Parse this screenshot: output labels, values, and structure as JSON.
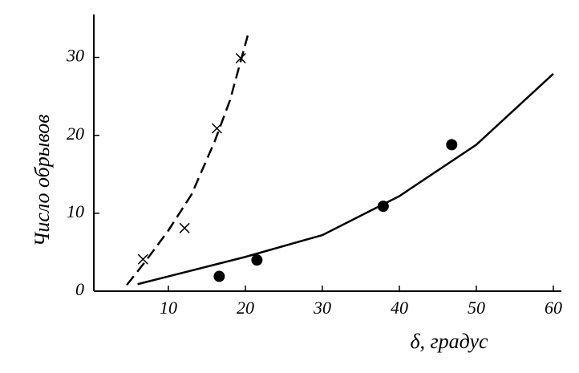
{
  "chart_data": {
    "type": "scatter",
    "xlabel": "δ, градус",
    "ylabel": "Число обрывов",
    "xlim": [
      0,
      60
    ],
    "ylim": [
      0,
      35
    ],
    "xticks": [
      10,
      20,
      30,
      40,
      50,
      60
    ],
    "yticks": [
      0,
      10,
      20,
      30
    ],
    "series": [
      {
        "marker": "x",
        "color": "#000000",
        "x": [
          6.7,
          12.1,
          16.3,
          19.4
        ],
        "values": [
          4.1,
          8.1,
          20.9,
          29.9
        ]
      },
      {
        "line": "dashed",
        "color": "#000000",
        "x": [
          4.6,
          7,
          10,
          13,
          16,
          18,
          20.3
        ],
        "values": [
          0.8,
          3.8,
          7.8,
          12.4,
          19.2,
          24.5,
          32.8
        ]
      },
      {
        "marker": "dot",
        "color": "#000000",
        "x": [
          16.6,
          21.5,
          37.9,
          46.8
        ],
        "values": [
          1.9,
          4.0,
          10.9,
          18.8
        ]
      },
      {
        "line": "solid",
        "color": "#000000",
        "x": [
          6,
          10,
          20,
          30,
          40,
          50,
          60
        ],
        "values": [
          0.9,
          1.9,
          4.4,
          7.2,
          12.2,
          18.8,
          27.9
        ]
      }
    ]
  }
}
